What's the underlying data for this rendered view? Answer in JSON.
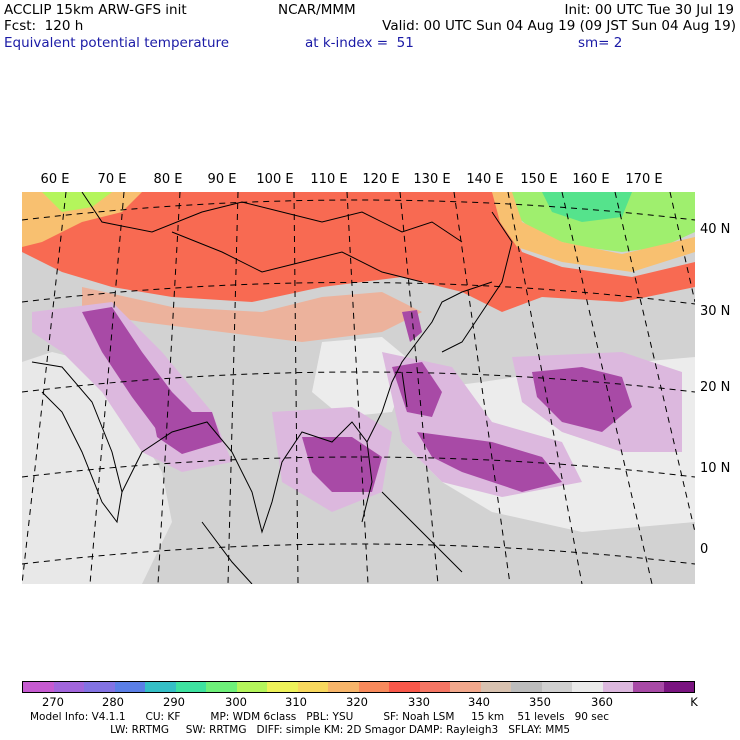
{
  "header": {
    "line1_left": "ACCLIP 15km ARW-GFS init",
    "line1_center": "NCAR/MMM",
    "line1_right": "Init: 00 UTC Tue 30 Jul 19",
    "line2_left": "Fcst:  120 h",
    "line2_right": "Valid: 00 UTC Sun 04 Aug 19 (09 JST Sun 04 Aug 19)",
    "line3_left": "Equivalent potential temperature",
    "line3_center": "at k-index =  51",
    "line3_right": "sm= 2"
  },
  "lon_labels": [
    "60 E",
    "70 E",
    "80 E",
    "90 E",
    "100 E",
    "110 E",
    "120 E",
    "130 E",
    "140 E",
    "150 E",
    "160 E",
    "170 E"
  ],
  "lat_labels": [
    "40 N",
    "30 N",
    "20 N",
    "10 N",
    "0"
  ],
  "colorbar": {
    "colors": [
      "#c65bd1",
      "#a266dc",
      "#8373e3",
      "#5b7fe6",
      "#35bfc6",
      "#3ee2a0",
      "#6ef07a",
      "#b4f55c",
      "#eef25a",
      "#f8d85e",
      "#f7b56a",
      "#f88a5c",
      "#f9584a",
      "#f57664",
      "#f2a88c",
      "#d8c2b0",
      "#bcbcbc",
      "#d0d0d0",
      "#eaeaea",
      "#dcb8de",
      "#a84aa6",
      "#7a1480"
    ],
    "labels": [
      "270",
      "280",
      "290",
      "300",
      "310",
      "320",
      "330",
      "340",
      "350",
      "360",
      "K"
    ]
  },
  "footer": {
    "line1": "Model Info: V4.1.1      CU: KF         MP: WDM 6class   PBL: YSU         SF: Noah LSM     15 km    51 levels   90 sec",
    "line2": "                        LW: RRTMG     SW: RRTMG   DIFF: simple KM: 2D Smagor DAMP: Rayleigh3   SFLAY: MM5"
  }
}
